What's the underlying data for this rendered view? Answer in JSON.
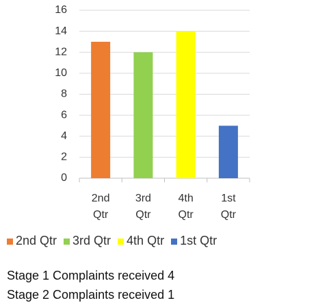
{
  "chart_data": {
    "type": "bar",
    "categories": [
      "2nd Qtr",
      "3rd Qtr",
      "4th Qtr",
      "1st Qtr"
    ],
    "values": [
      13,
      12,
      14,
      5
    ],
    "colors": [
      "#ed7d31",
      "#92d050",
      "#ffff00",
      "#4472c4"
    ],
    "ylim": [
      0,
      16
    ],
    "yticks": [
      0,
      2,
      4,
      6,
      8,
      10,
      12,
      14,
      16
    ],
    "grid": true,
    "legend": "bottom",
    "notes": [
      "Stage 1 Complaints received 4",
      "Stage 2 Complaints received 1"
    ]
  }
}
